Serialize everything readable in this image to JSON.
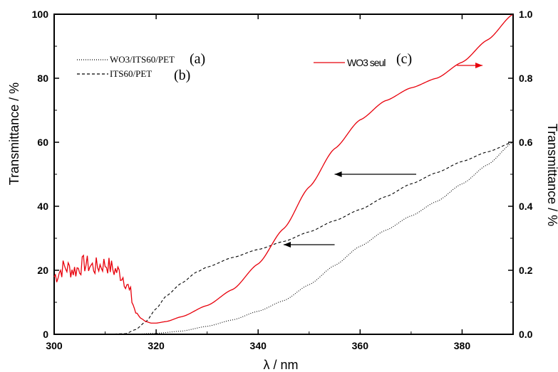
{
  "chart_data": {
    "type": "line",
    "xlabel": "λ / nm",
    "ylabel_left": "Transmittance / %",
    "ylabel_right": "Transmittance / %",
    "xlim": [
      300,
      390
    ],
    "ylim_left": [
      0,
      100
    ],
    "ylim_right": [
      0,
      1.0
    ],
    "x_ticks": [
      "300",
      "320",
      "340",
      "360",
      "380"
    ],
    "y_left_ticks": [
      "0",
      "20",
      "40",
      "60",
      "80",
      "100"
    ],
    "y_right_ticks": [
      "0.0",
      "0.2",
      "0.4",
      "0.6",
      "0.8",
      "1.0"
    ],
    "grid": false,
    "series": [
      {
        "name": "WO3/ITS60/PET",
        "tag": "(a)",
        "axis": "left",
        "color": "#000000",
        "style": "dotted",
        "x": [
          300,
          310,
          315,
          320,
          325,
          330,
          335,
          340,
          345,
          350,
          355,
          360,
          365,
          370,
          375,
          380,
          385,
          390
        ],
        "y": [
          0,
          0,
          0,
          0.3,
          1,
          2.5,
          4.5,
          7.2,
          10.5,
          15.5,
          21.5,
          27.5,
          32.5,
          37,
          41.5,
          47,
          53,
          60
        ]
      },
      {
        "name": "ITS60/PET",
        "tag": "(b)",
        "axis": "left",
        "color": "#000000",
        "style": "dashed",
        "x": [
          300,
          310,
          314,
          316,
          318,
          320,
          322,
          325,
          328,
          330,
          335,
          340,
          345,
          350,
          355,
          360,
          365,
          370,
          375,
          380,
          385,
          390
        ],
        "y": [
          0,
          0,
          0.2,
          1.5,
          4,
          8,
          12,
          16,
          19.5,
          21,
          24,
          26.5,
          29,
          32,
          35.5,
          39,
          43,
          47,
          50.5,
          54,
          57,
          60
        ]
      },
      {
        "name": "WO3 seul",
        "tag": "(c)",
        "axis": "right",
        "color": "#e8000b",
        "style": "solid",
        "x": [
          300,
          302,
          304,
          306,
          308,
          310,
          312,
          313,
          314,
          315,
          316,
          317,
          318,
          319,
          320,
          322,
          325,
          330,
          335,
          340,
          345,
          350,
          355,
          360,
          365,
          370,
          375,
          380,
          385,
          390
        ],
        "y": [
          0.18,
          0.21,
          0.2,
          0.22,
          0.21,
          0.22,
          0.2,
          0.19,
          0.17,
          0.12,
          0.07,
          0.05,
          0.04,
          0.035,
          0.035,
          0.04,
          0.055,
          0.09,
          0.14,
          0.22,
          0.33,
          0.46,
          0.58,
          0.67,
          0.73,
          0.77,
          0.8,
          0.85,
          0.92,
          1.0
        ],
        "noise_range_x": [
          300,
          316
        ],
        "noise_amplitude": 0.03
      }
    ],
    "legend": {
      "a_label": "WO3/ITS60/PET",
      "a_tag": "(a)",
      "b_label": "ITS60/PET",
      "b_tag": "(b)",
      "c_label": "WO3 seul",
      "c_tag": "(c)"
    },
    "arrows": [
      {
        "series": "WO3 seul",
        "direction": "right",
        "color": "#e8000b",
        "from": [
          379,
          0.84
        ],
        "to": [
          384,
          0.84
        ]
      },
      {
        "series": "ITS60/PET",
        "direction": "left",
        "color": "#000000",
        "from": [
          371,
          50
        ],
        "to": [
          355,
          50
        ]
      },
      {
        "series": "WO3/ITS60/PET",
        "direction": "left",
        "color": "#000000",
        "from": [
          355,
          28
        ],
        "to": [
          345,
          28
        ]
      }
    ]
  }
}
